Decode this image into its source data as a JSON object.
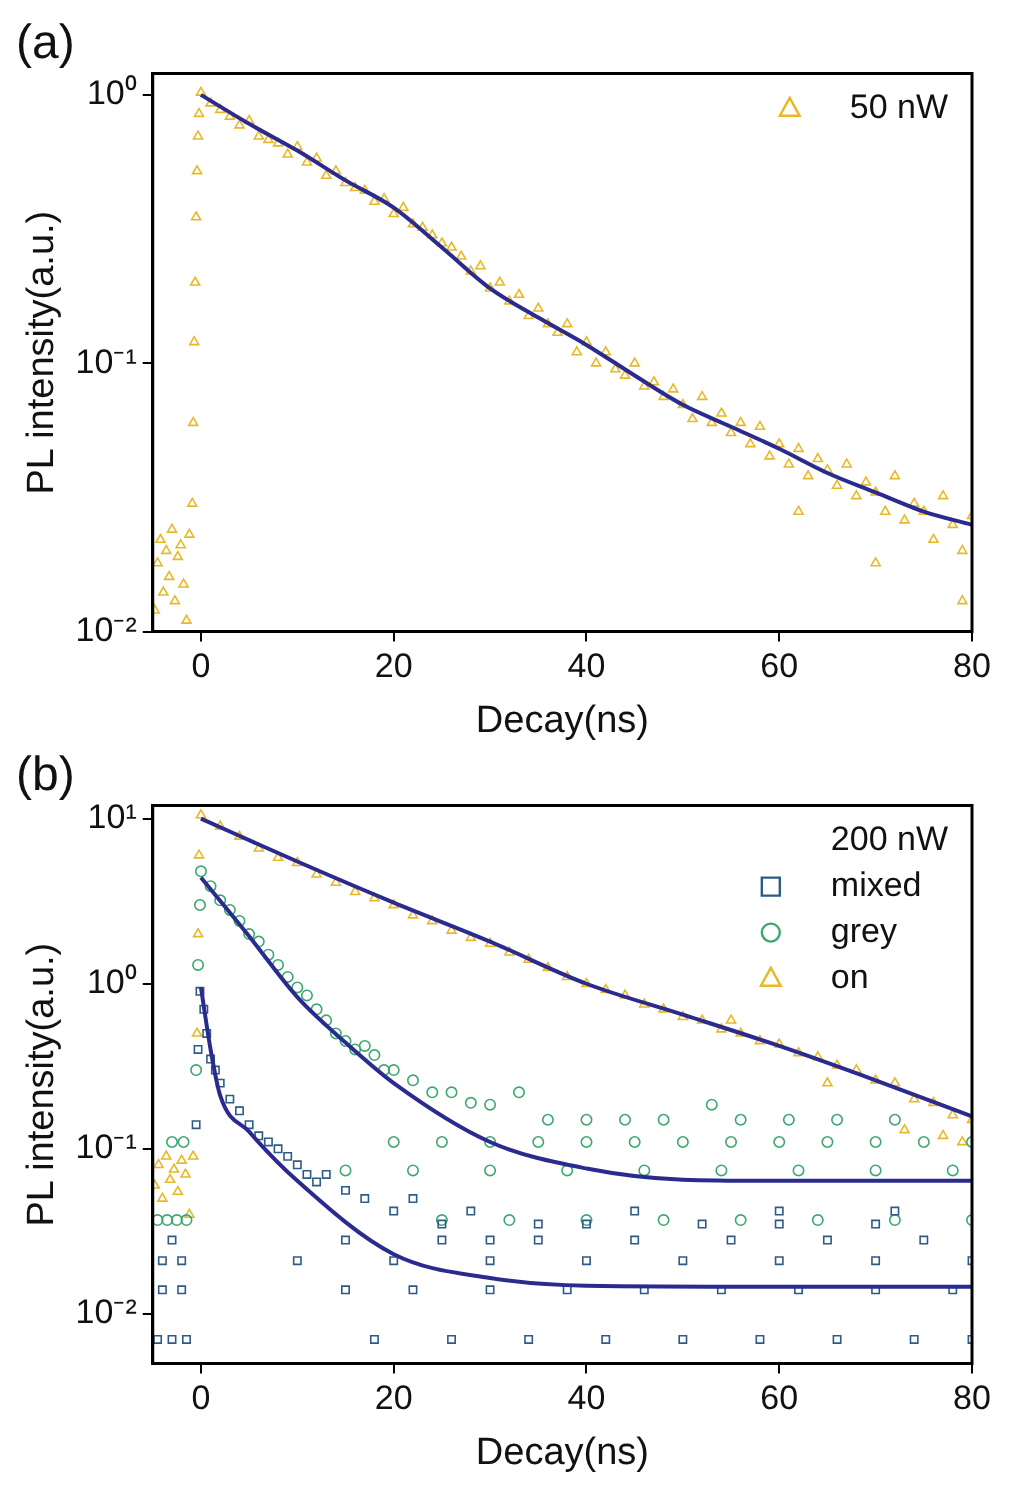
{
  "chart_data": [
    {
      "type": "scatter",
      "title": "(a)",
      "xlabel": "Decay(ns)",
      "ylabel": "PL intensity(a.u.)",
      "log": "y",
      "legend": "top right",
      "xlim": [
        -5,
        80
      ],
      "xticks": [
        0,
        20,
        40,
        60,
        80
      ],
      "ylim": [
        0.01,
        1.2
      ],
      "yticks": [
        {
          "value": 0.01,
          "label": "10⁻²"
        },
        {
          "value": 0.1,
          "label": "10⁻¹"
        },
        {
          "value": 1,
          "label": "10⁰"
        }
      ],
      "series": [
        {
          "name": "50 nW",
          "color": "#e8b828",
          "marker": "triangle",
          "x": [
            -4.8,
            -4.5,
            -4.2,
            -3.9,
            -3.6,
            -3.3,
            -3,
            -2.7,
            -2.4,
            -2.1,
            -1.8,
            -1.5,
            -1.2,
            -0.9,
            -0.8,
            -0.7,
            -0.6,
            -0.5,
            -0.4,
            -0.3,
            -0.2,
            0,
            1,
            2,
            3,
            4,
            5,
            6,
            7,
            8,
            9,
            10,
            11,
            12,
            13,
            14,
            15,
            16,
            17,
            18,
            19,
            20,
            21,
            22,
            23,
            24,
            25,
            26,
            27,
            28,
            29,
            30,
            31,
            32,
            33,
            34,
            35,
            36,
            37,
            38,
            39,
            40,
            41,
            42,
            43,
            44,
            45,
            46,
            47,
            48,
            49,
            50,
            51,
            52,
            53,
            54,
            55,
            56,
            57,
            58,
            59,
            60,
            61,
            62,
            63,
            64,
            65,
            66,
            67,
            68,
            69,
            70,
            71,
            72,
            73,
            74,
            75,
            76,
            77,
            78,
            79,
            80,
            62,
            70,
            79
          ],
          "values": [
            0.012,
            0.018,
            0.022,
            0.014,
            0.02,
            0.016,
            0.024,
            0.013,
            0.019,
            0.021,
            0.015,
            0.011,
            0.023,
            0.03,
            0.06,
            0.12,
            0.2,
            0.35,
            0.52,
            0.7,
            0.85,
            1.02,
            0.93,
            0.88,
            0.83,
            0.77,
            0.8,
            0.7,
            0.68,
            0.66,
            0.6,
            0.64,
            0.56,
            0.58,
            0.5,
            0.52,
            0.47,
            0.45,
            0.44,
            0.4,
            0.41,
            0.36,
            0.38,
            0.33,
            0.32,
            0.3,
            0.28,
            0.27,
            0.25,
            0.22,
            0.23,
            0.19,
            0.2,
            0.17,
            0.18,
            0.15,
            0.16,
            0.14,
            0.13,
            0.14,
            0.11,
            0.12,
            0.1,
            0.11,
            0.095,
            0.09,
            0.1,
            0.082,
            0.085,
            0.075,
            0.08,
            0.07,
            0.062,
            0.075,
            0.06,
            0.065,
            0.055,
            0.06,
            0.05,
            0.058,
            0.045,
            0.05,
            0.042,
            0.048,
            0.038,
            0.044,
            0.04,
            0.035,
            0.042,
            0.032,
            0.036,
            0.033,
            0.028,
            0.038,
            0.026,
            0.03,
            0.028,
            0.022,
            0.032,
            0.025,
            0.02,
            0.027,
            0.028,
            0.018,
            0.013
          ]
        },
        {
          "type": "line",
          "color": "#2b2b8f",
          "marker": "none",
          "x": [
            0,
            5,
            10,
            15,
            20,
            25,
            30,
            35,
            40,
            45,
            50,
            55,
            60,
            65,
            70,
            75,
            80
          ],
          "values": [
            1,
            0.78,
            0.62,
            0.48,
            0.38,
            0.27,
            0.19,
            0.148,
            0.117,
            0.09,
            0.07,
            0.058,
            0.048,
            0.039,
            0.033,
            0.028,
            0.025
          ]
        }
      ]
    },
    {
      "type": "scatter",
      "title": "(b)",
      "xlabel": "Decay(ns)",
      "ylabel": "PL intensity(a.u.)",
      "log": "y",
      "legend": "top right",
      "legend_title": "200 nW",
      "xlim": [
        -5,
        80
      ],
      "xticks": [
        0,
        20,
        40,
        60,
        80
      ],
      "ylim": [
        0.005,
        12
      ],
      "yticks": [
        {
          "value": 0.01,
          "label": "10⁻²"
        },
        {
          "value": 0.1,
          "label": "10⁻¹"
        },
        {
          "value": 1,
          "label": "10⁰"
        },
        {
          "value": 10,
          "label": "10¹"
        }
      ],
      "series": [
        {
          "name": "mixed",
          "color": "#2e5a88",
          "marker": "square",
          "x": [
            -4.5,
            -3,
            -1.5,
            -4,
            -2,
            -4,
            -2,
            -3,
            -0.5,
            -0.3,
            -0.1,
            0.3,
            0.6,
            1,
            1.5,
            2,
            3,
            4,
            5,
            6,
            7,
            8,
            9,
            10,
            11,
            12,
            13,
            15,
            17,
            20,
            22,
            25,
            28,
            30,
            35,
            15,
            25,
            35,
            45,
            55,
            65,
            75,
            10,
            20,
            30,
            40,
            50,
            60,
            70,
            80,
            15,
            22,
            30,
            38,
            46,
            54,
            62,
            70,
            78,
            18,
            26,
            34,
            42,
            50,
            58,
            66,
            74,
            80,
            40,
            52,
            60,
            70,
            45,
            60,
            72
          ],
          "values": [
            0.007,
            0.007,
            0.007,
            0.014,
            0.014,
            0.021,
            0.021,
            0.028,
            0.14,
            0.4,
            0.9,
            0.7,
            0.5,
            0.35,
            0.3,
            0.25,
            0.2,
            0.17,
            0.14,
            0.12,
            0.11,
            0.1,
            0.09,
            0.08,
            0.07,
            0.063,
            0.07,
            0.056,
            0.05,
            0.042,
            0.05,
            0.035,
            0.042,
            0.028,
            0.035,
            0.028,
            0.028,
            0.028,
            0.028,
            0.028,
            0.028,
            0.028,
            0.021,
            0.021,
            0.021,
            0.021,
            0.021,
            0.021,
            0.021,
            0.021,
            0.014,
            0.014,
            0.014,
            0.014,
            0.014,
            0.014,
            0.014,
            0.014,
            0.014,
            0.007,
            0.007,
            0.007,
            0.007,
            0.007,
            0.007,
            0.007,
            0.007,
            0.007,
            0.035,
            0.035,
            0.035,
            0.035,
            0.042,
            0.042,
            0.042
          ]
        },
        {
          "name": "grey",
          "color": "#3aa870",
          "marker": "circle",
          "x": [
            -4.5,
            -3.5,
            -2.5,
            -1.5,
            -3,
            -1.8,
            -0.5,
            -0.3,
            -0.1,
            0,
            1,
            2,
            3,
            4,
            5,
            6,
            7,
            8,
            9,
            10,
            11,
            12,
            13,
            14,
            15,
            16,
            17,
            18,
            19,
            20,
            22,
            24,
            26,
            28,
            30,
            33,
            36,
            40,
            44,
            48,
            53,
            56,
            61,
            66,
            72,
            20,
            25,
            30,
            35,
            40,
            45,
            50,
            55,
            60,
            65,
            70,
            75,
            80,
            15,
            22,
            30,
            38,
            46,
            54,
            62,
            70,
            78,
            25,
            32,
            40,
            48,
            56,
            64,
            72,
            80
          ],
          "values": [
            0.037,
            0.037,
            0.037,
            0.037,
            0.11,
            0.11,
            0.3,
            1.3,
            3,
            4.8,
            3.9,
            3.2,
            2.8,
            2.4,
            2,
            1.8,
            1.5,
            1.3,
            1.1,
            0.95,
            0.85,
            0.7,
            0.6,
            0.5,
            0.45,
            0.4,
            0.42,
            0.37,
            0.3,
            0.3,
            0.26,
            0.22,
            0.22,
            0.19,
            0.185,
            0.22,
            0.15,
            0.15,
            0.15,
            0.15,
            0.185,
            0.15,
            0.15,
            0.15,
            0.15,
            0.11,
            0.11,
            0.11,
            0.11,
            0.11,
            0.11,
            0.11,
            0.11,
            0.11,
            0.11,
            0.11,
            0.11,
            0.11,
            0.074,
            0.074,
            0.074,
            0.074,
            0.074,
            0.074,
            0.074,
            0.074,
            0.074,
            0.037,
            0.037,
            0.037,
            0.037,
            0.037,
            0.037,
            0.037,
            0.037
          ]
        },
        {
          "name": "on",
          "color": "#e8b828",
          "marker": "triangle",
          "x": [
            -4.8,
            -4.4,
            -4,
            -3.6,
            -3.2,
            -2.8,
            -2.4,
            -2,
            -1.6,
            -1.2,
            -0.8,
            -0.4,
            -0.3,
            -0.2,
            0,
            2,
            4,
            6,
            8,
            10,
            12,
            14,
            16,
            18,
            20,
            22,
            24,
            26,
            28,
            30,
            32,
            34,
            36,
            38,
            40,
            42,
            44,
            46,
            48,
            50,
            52,
            54,
            56,
            58,
            60,
            62,
            64,
            66,
            68,
            70,
            72,
            74,
            76,
            78,
            80,
            73,
            77,
            79,
            65,
            55
          ],
          "values": [
            0.06,
            0.08,
            0.05,
            0.09,
            0.065,
            0.075,
            0.055,
            0.085,
            0.07,
            0.04,
            0.09,
            0.5,
            2,
            6,
            10.5,
            9,
            7.8,
            6.6,
            5.8,
            5.4,
            4.6,
            4.1,
            3.6,
            3.3,
            3,
            2.6,
            2.4,
            2.1,
            1.9,
            1.75,
            1.55,
            1.4,
            1.25,
            1.1,
            1,
            0.92,
            0.85,
            0.75,
            0.7,
            0.63,
            0.6,
            0.53,
            0.5,
            0.45,
            0.43,
            0.38,
            0.36,
            0.32,
            0.3,
            0.26,
            0.25,
            0.2,
            0.19,
            0.16,
            0.15,
            0.13,
            0.12,
            0.11,
            0.25,
            0.6
          ]
        },
        {
          "type": "line",
          "color": "#2b2b8f",
          "marker": "none",
          "x": [
            0,
            10,
            20,
            30,
            40,
            50,
            60,
            70,
            80
          ],
          "values": [
            10,
            5.5,
            3.1,
            1.8,
            1,
            0.65,
            0.42,
            0.26,
            0.157
          ]
        },
        {
          "type": "line",
          "color": "#2b2b8f",
          "marker": "none",
          "x": [
            0,
            5,
            10,
            15,
            20,
            30,
            40,
            50,
            60,
            80
          ],
          "values": [
            4.4,
            1.94,
            0.83,
            0.44,
            0.25,
            0.11,
            0.076,
            0.065,
            0.064,
            0.064
          ]
        },
        {
          "type": "line",
          "color": "#2b2b8f",
          "marker": "none",
          "x": [
            0,
            1,
            2,
            5,
            10,
            20,
            30,
            40,
            60,
            80
          ],
          "values": [
            0.95,
            0.4,
            0.21,
            0.127,
            0.064,
            0.023,
            0.0165,
            0.0148,
            0.0146,
            0.0146
          ]
        }
      ]
    }
  ]
}
